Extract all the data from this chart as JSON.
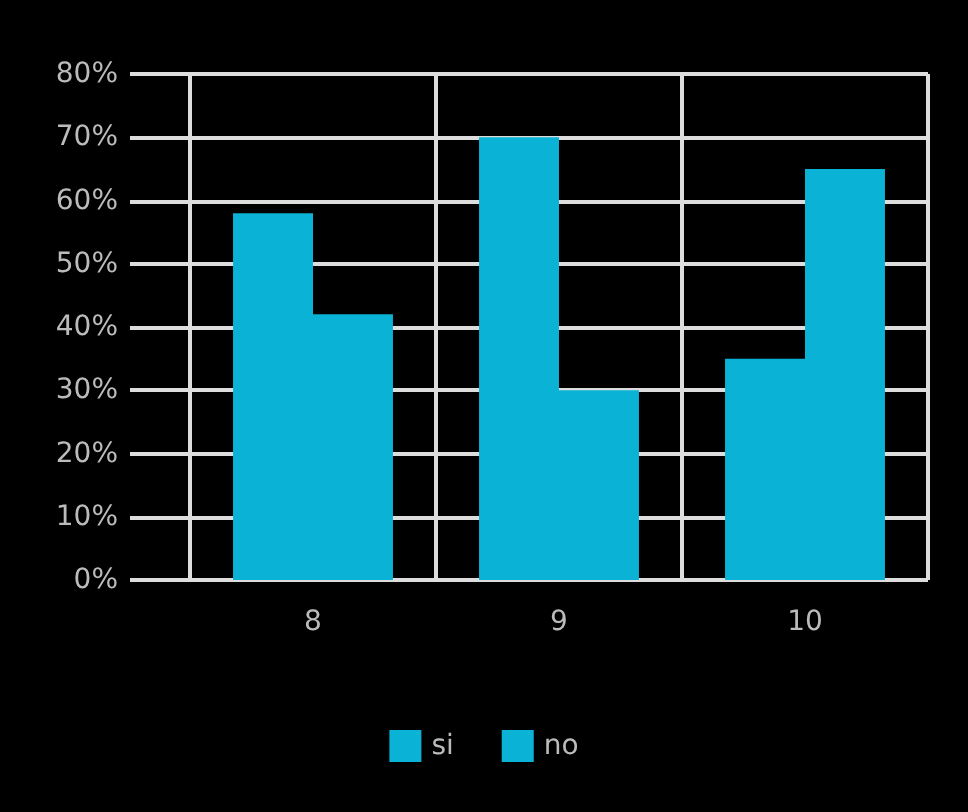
{
  "chart_data": {
    "type": "bar",
    "categories": [
      "8",
      "9",
      "10"
    ],
    "series": [
      {
        "name": "si",
        "color": "#0ab3d6",
        "values": [
          58,
          70,
          35
        ]
      },
      {
        "name": "no",
        "color": "#0ab3d6",
        "values": [
          42,
          30,
          65
        ]
      }
    ],
    "ylim": [
      0,
      80
    ],
    "yticks": [
      {
        "value": 0,
        "label": "0%"
      },
      {
        "value": 10,
        "label": "10%"
      },
      {
        "value": 20,
        "label": "20%"
      },
      {
        "value": 30,
        "label": "30%"
      },
      {
        "value": 40,
        "label": "40%"
      },
      {
        "value": 50,
        "label": "50%"
      },
      {
        "value": 60,
        "label": "60%"
      },
      {
        "value": 70,
        "label": "70%"
      },
      {
        "value": 80,
        "label": "80%"
      }
    ],
    "grid": true,
    "legend": "bottom"
  }
}
